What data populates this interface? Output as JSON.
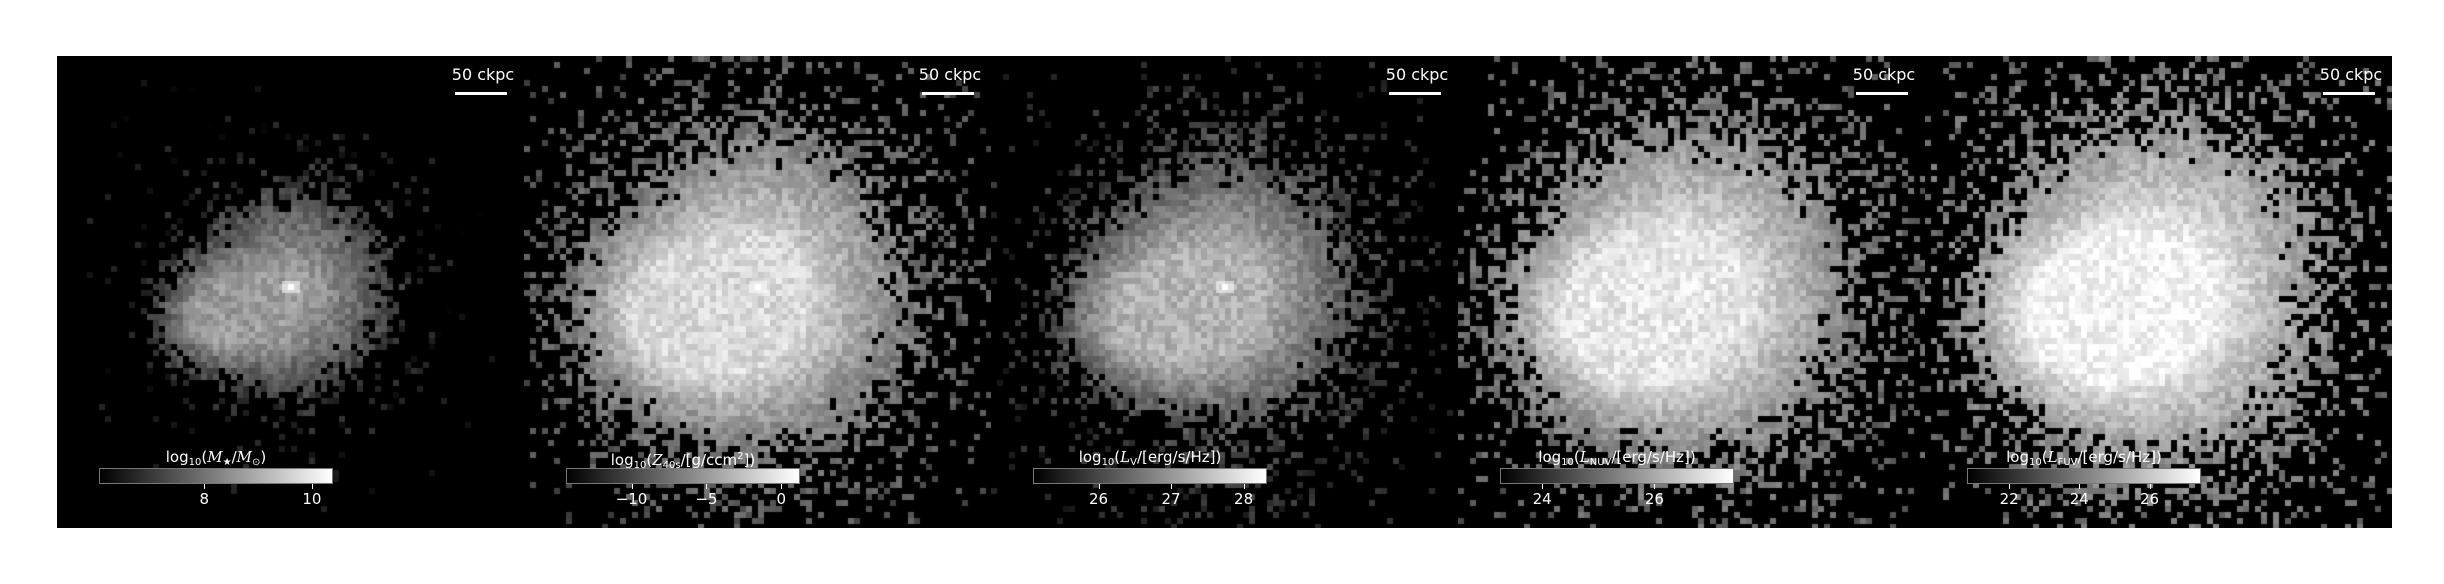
{
  "figure": {
    "background": "#000000",
    "colormap": "gray"
  },
  "panels": [
    {
      "scale_label": "50 ckpc",
      "colorbar": {
        "label_parts": [
          "log",
          "10",
          "(",
          "M",
          "★",
          "/",
          "M",
          "⊙",
          ")"
        ],
        "ticks": [
          "8",
          "10"
        ],
        "tick_fracs": [
          0.45,
          0.91
        ]
      }
    },
    {
      "scale_label": "50 ckpc",
      "colorbar": {
        "label_parts": [
          "log",
          "10",
          "(",
          "Z",
          "40s",
          "/[g/ccm",
          "2",
          "])",
          ""
        ],
        "ticks": [
          "−10",
          "−5",
          "0"
        ],
        "tick_fracs": [
          0.28,
          0.6,
          0.92
        ]
      }
    },
    {
      "scale_label": "50 ckpc",
      "colorbar": {
        "label_parts": [
          "log",
          "10",
          "(",
          "L",
          "V",
          "/[erg/s/Hz])",
          ""
        ],
        "ticks": [
          "26",
          "27",
          "28"
        ],
        "tick_fracs": [
          0.28,
          0.59,
          0.9
        ]
      }
    },
    {
      "scale_label": "50 ckpc",
      "colorbar": {
        "label_parts": [
          "log",
          "10",
          "(",
          "L",
          "NUV",
          "/[erg/s/Hz])",
          ""
        ],
        "ticks": [
          "24",
          "26"
        ],
        "tick_fracs": [
          0.18,
          0.66
        ]
      }
    },
    {
      "scale_label": "50 ckpc",
      "colorbar": {
        "label_parts": [
          "log",
          "10",
          "(",
          "L",
          "FUV",
          "/[erg/s/Hz])",
          ""
        ],
        "ticks": [
          "22",
          "24",
          "26"
        ],
        "tick_fracs": [
          0.18,
          0.48,
          0.78
        ]
      }
    }
  ]
}
